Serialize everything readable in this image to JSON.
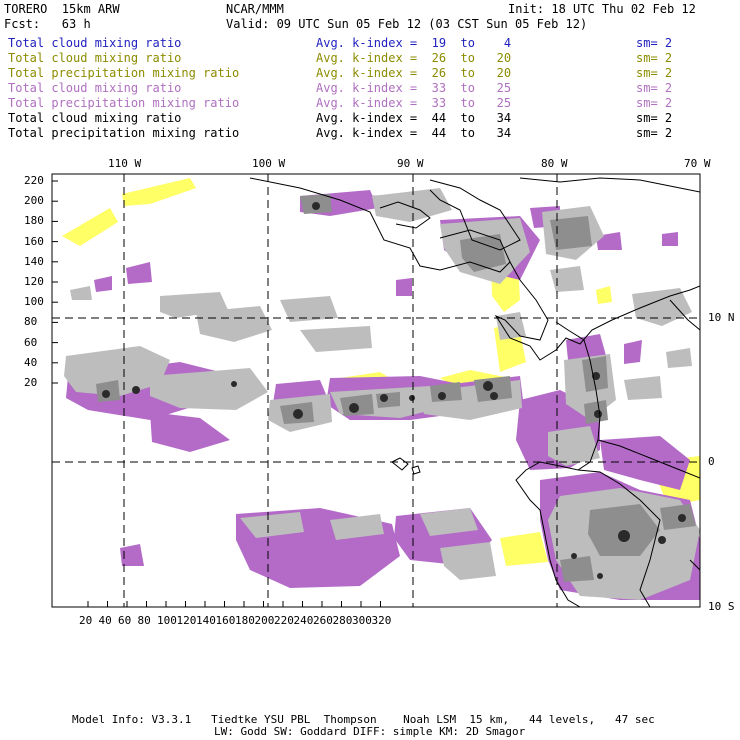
{
  "header": {
    "model": "TORERO  15km ARW",
    "org": "NCAR/MMM",
    "init": "Init: 18 UTC Thu 02 Feb 12",
    "fcst": "Fcst:   63 h",
    "valid": "Valid: 09 UTC Sun 05 Feb 12 (03 CST Sun 05 Feb 12)"
  },
  "legend": [
    {
      "field": "Total cloud mixing ratio",
      "kindex": "Avg. k-index =  19  to    4",
      "sm": "sm= 2",
      "color": "#1f1fbf"
    },
    {
      "field": "Total cloud mixing ratio",
      "kindex": "Avg. k-index =  26  to   20",
      "sm": "sm= 2",
      "color": "#8c8c00"
    },
    {
      "field": "Total precipitation mixing ratio",
      "kindex": "Avg. k-index =  26  to   20",
      "sm": "sm= 2",
      "color": "#8c8c00"
    },
    {
      "field": "Total cloud mixing ratio",
      "kindex": "Avg. k-index =  33  to   25",
      "sm": "sm= 2",
      "color": "#b070c0"
    },
    {
      "field": "Total precipitation mixing ratio",
      "kindex": "Avg. k-index =  33  to   25",
      "sm": "sm= 2",
      "color": "#b070c0"
    },
    {
      "field": "Total cloud mixing ratio",
      "kindex": "Avg. k-index =  44  to   34",
      "sm": "sm= 2",
      "color": "#000000"
    },
    {
      "field": "Total precipitation mixing ratio",
      "kindex": "Avg. k-index =  44  to   34",
      "sm": "sm= 2",
      "color": "#000000"
    }
  ],
  "map": {
    "lon_labels": [
      "110 W",
      "100 W",
      "90 W",
      "80 W",
      "70 W"
    ],
    "lat_labels": [
      "10 N",
      "0",
      "10 S"
    ],
    "y_ticks": [
      "220",
      "200",
      "180",
      "160",
      "140",
      "120",
      "100",
      "80",
      "60",
      "40",
      "20"
    ],
    "x_ticks": [
      "20",
      "40",
      "60",
      "80",
      "100",
      "120",
      "140",
      "160",
      "180",
      "200",
      "220",
      "240",
      "260",
      "280",
      "300",
      "320"
    ],
    "colors": {
      "light_gray": "#bdbdbd",
      "mid_gray": "#8e8e8e",
      "dark": "#2a2a2a",
      "purple": "#b36bc7",
      "yellow": "#ffff66"
    }
  },
  "footer": {
    "line1": "Model Info: V3.3.1   Tiedtke YSU PBL  Thompson    Noah LSM  15 km,   44 levels,   47 sec",
    "line2": "LW: Godd SW: Goddard DIFF: simple KM: 2D Smagor"
  }
}
